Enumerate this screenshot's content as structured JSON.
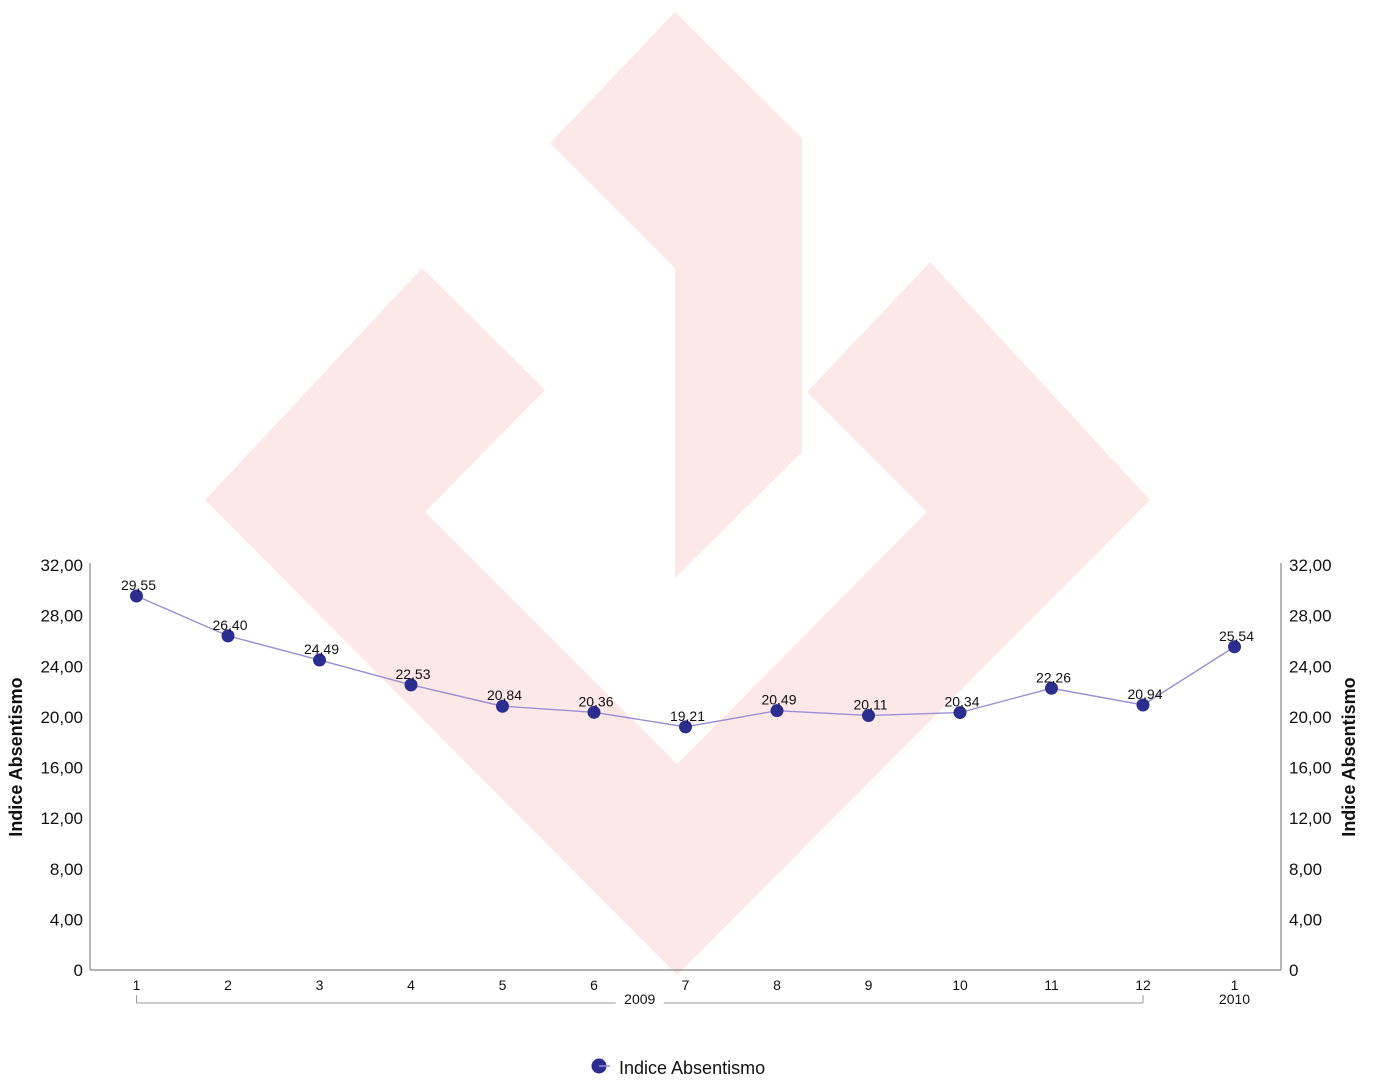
{
  "chart_data": {
    "type": "line",
    "ylabel_left": "Indice Absentismo",
    "ylabel_right": "Indice Absentismo",
    "ylim": [
      0,
      32
    ],
    "y_ticks": [
      "0",
      "4,00",
      "8,00",
      "12,00",
      "16,00",
      "20,00",
      "24,00",
      "28,00",
      "32,00"
    ],
    "y_tick_values": [
      0,
      4,
      8,
      12,
      16,
      20,
      24,
      28,
      32
    ],
    "categories": [
      "1",
      "2",
      "3",
      "4",
      "5",
      "6",
      "7",
      "8",
      "9",
      "10",
      "11",
      "12",
      "1"
    ],
    "groups": [
      {
        "label": "2009",
        "start": 0,
        "end": 11
      },
      {
        "label": "2010",
        "start": 12,
        "end": 12
      }
    ],
    "series": [
      {
        "name": "Indice Absentismo",
        "values": [
          29.55,
          26.4,
          24.49,
          22.53,
          20.84,
          20.36,
          19.21,
          20.49,
          20.11,
          20.34,
          22.26,
          20.94,
          25.54
        ],
        "labels": [
          "29,55",
          "26,40",
          "24,49",
          "22,53",
          "20,84",
          "20,36",
          "19,21",
          "20,49",
          "20,11",
          "20,34",
          "22,26",
          "20,94",
          "25,54"
        ],
        "marker_color": "#2b2d8f",
        "line_color": "#9c8ed6"
      }
    ],
    "legend": {
      "position": "bottom",
      "label": "Indice Absentismo"
    },
    "grid": false,
    "watermark_color": "#fde8e8"
  }
}
